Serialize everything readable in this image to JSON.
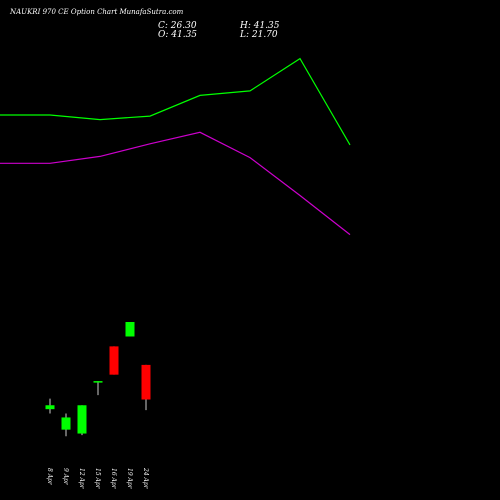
{
  "header": {
    "title": "NAUKRI 970 CE Option Chart MunafaSutra.com",
    "close": "C: 26.30",
    "open": "O: 41.35",
    "high": "H: 41.35",
    "low": "L: 21.70"
  },
  "colors": {
    "background": "#000000",
    "up": "#00ff00",
    "down": "#ff0000",
    "upper_line": "#00ff00",
    "lower_line": "#cc00cc",
    "wick": "#ffffff",
    "text": "#ffffff"
  },
  "chart_data": {
    "type": "candlestick",
    "title": "NAUKRI 970 CE Option Chart MunafaSutra.com",
    "ylim": [
      0,
      200
    ],
    "categories": [
      "8 Apr",
      "9 Apr",
      "12 Apr",
      "15 Apr",
      "16 Apr",
      "19 Apr",
      "24 Apr"
    ],
    "candles": [
      {
        "date": "8 Apr",
        "open": 22.1,
        "high": 26.7,
        "low": 20.2,
        "close": 23.8
      },
      {
        "date": "9 Apr",
        "open": 13.2,
        "high": 20.2,
        "low": 10.3,
        "close": 18.5
      },
      {
        "date": "12 Apr",
        "open": 11.5,
        "high": 23.8,
        "low": 10.8,
        "close": 23.8
      },
      {
        "date": "15 Apr",
        "open": 34.3,
        "high": 34.3,
        "low": 28.2,
        "close": 34.3
      },
      {
        "date": "16 Apr",
        "open": 49.4,
        "high": 49.4,
        "low": 37.1,
        "close": 37.1
      },
      {
        "date": "19 Apr",
        "open": 53.7,
        "high": 58.7,
        "low": 53.7,
        "close": 60.0
      },
      {
        "date": "24 Apr",
        "open": 41.35,
        "high": 41.35,
        "low": 21.7,
        "close": 26.3
      }
    ],
    "lines": [
      {
        "color": "#00ff00",
        "x": [
          0,
          50,
          100,
          150,
          200,
          250,
          300,
          350
        ],
        "values": [
          150.0,
          150.0,
          148.0,
          149.5,
          158.5,
          160.5,
          174.5,
          137.0
        ]
      },
      {
        "color": "#cc00cc",
        "x": [
          0,
          50,
          100,
          150,
          200,
          250,
          300,
          350
        ],
        "values": [
          129.0,
          129.0,
          132.0,
          137.5,
          142.5,
          131.5,
          115.0,
          98.0
        ]
      }
    ]
  }
}
